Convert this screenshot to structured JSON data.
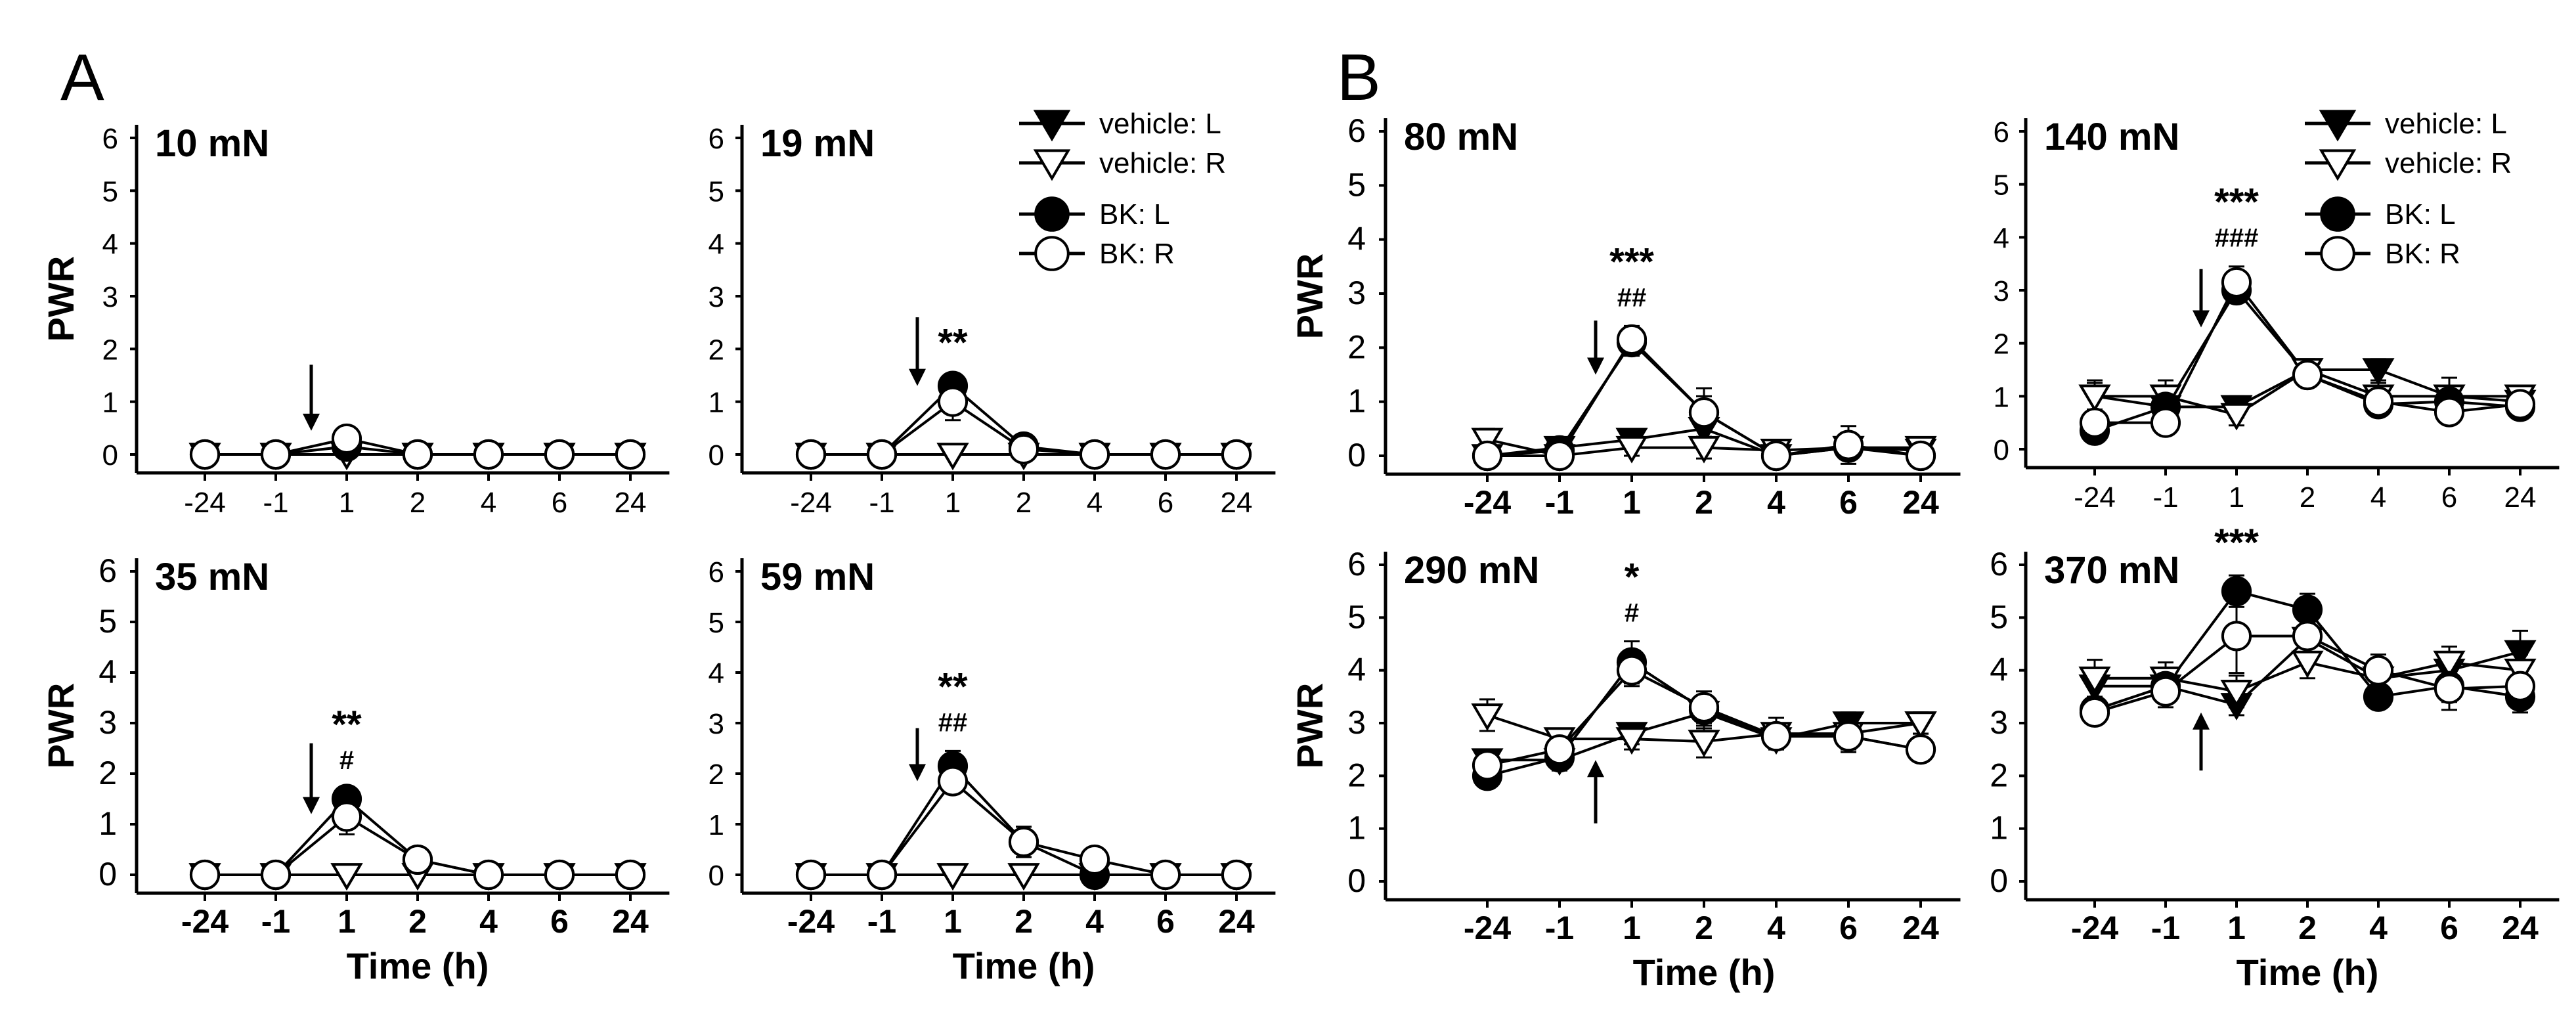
{
  "figure": {
    "panel_labels": [
      "A",
      "B"
    ]
  },
  "legend": {
    "vehicle_L": "vehicle: L",
    "vehicle_R": "vehicle: R",
    "BK_L": "BK: L",
    "BK_R": "BK: R"
  },
  "chart_data": [
    {
      "type": "line",
      "title": "10 mN",
      "group": "A",
      "categories": [
        "-24",
        "-1",
        "1",
        "2",
        "4",
        "6",
        "24"
      ],
      "xlabel": "",
      "ylabel": "PWR",
      "ylim": [
        0,
        6
      ],
      "yticks": [
        "0",
        "1",
        "2",
        "3",
        "4",
        "5",
        "6"
      ],
      "series": [
        {
          "name": "vehicle: L",
          "values": [
            0,
            0,
            0,
            0,
            0,
            0,
            0
          ],
          "err": [
            0,
            0,
            0,
            0,
            0,
            0,
            0
          ]
        },
        {
          "name": "vehicle: R",
          "values": [
            0,
            0,
            0,
            0,
            0,
            0,
            0
          ],
          "err": [
            0,
            0,
            0,
            0,
            0,
            0,
            0
          ]
        },
        {
          "name": "BK: L",
          "values": [
            0,
            0,
            0.15,
            0,
            0,
            0,
            0
          ],
          "err": [
            0,
            0,
            0.1,
            0,
            0,
            0,
            0
          ]
        },
        {
          "name": "BK: R",
          "values": [
            0,
            0,
            0.3,
            0,
            0,
            0,
            0
          ],
          "err": [
            0,
            0,
            0.2,
            0,
            0,
            0,
            0
          ]
        }
      ],
      "arrow": {
        "x_between": [
          1,
          2
        ],
        "direction": "down",
        "y_from": 1.7,
        "y_to": 0.45
      },
      "annotations": []
    },
    {
      "type": "line",
      "title": "19 mN",
      "group": "A",
      "categories": [
        "-24",
        "-1",
        "1",
        "2",
        "4",
        "6",
        "24"
      ],
      "xlabel": "",
      "ylabel": "",
      "ylim": [
        0,
        6
      ],
      "yticks": [
        "0",
        "1",
        "2",
        "3",
        "4",
        "5",
        "6"
      ],
      "series": [
        {
          "name": "vehicle: L",
          "values": [
            0,
            0,
            0,
            0,
            0,
            0,
            0
          ],
          "err": [
            0,
            0,
            0,
            0,
            0,
            0,
            0
          ]
        },
        {
          "name": "vehicle: R",
          "values": [
            0,
            0,
            0,
            0,
            0,
            0,
            0
          ],
          "err": [
            0,
            0,
            0,
            0,
            0,
            0,
            0
          ]
        },
        {
          "name": "BK: L",
          "values": [
            0,
            0,
            1.3,
            0.15,
            0,
            0,
            0
          ],
          "err": [
            0,
            0,
            0.2,
            0.15,
            0,
            0,
            0
          ]
        },
        {
          "name": "BK: R",
          "values": [
            0,
            0,
            1.0,
            0.1,
            0,
            0,
            0
          ],
          "err": [
            0,
            0,
            0.35,
            0.1,
            0,
            0,
            0
          ]
        }
      ],
      "arrow": {
        "x_between": [
          1,
          2
        ],
        "direction": "down",
        "y_from": 2.6,
        "y_to": 1.3
      },
      "annotations": [
        {
          "x": 2,
          "lines": [
            "**"
          ]
        }
      ]
    },
    {
      "type": "line",
      "title": "35 mN",
      "group": "A",
      "categories": [
        "-24",
        "-1",
        "1",
        "2",
        "4",
        "6",
        "24"
      ],
      "xlabel": "Time (h)",
      "ylabel": "PWR",
      "ylim": [
        0,
        6
      ],
      "yticks": [
        "0",
        "1",
        "2",
        "3",
        "4",
        "5",
        "6"
      ],
      "series": [
        {
          "name": "vehicle: L",
          "values": [
            0,
            0,
            0,
            0,
            0,
            0,
            0
          ],
          "err": [
            0,
            0,
            0,
            0,
            0,
            0,
            0
          ]
        },
        {
          "name": "vehicle: R",
          "values": [
            0,
            0,
            0,
            0,
            0,
            0,
            0
          ],
          "err": [
            0,
            0,
            0,
            0,
            0,
            0,
            0
          ]
        },
        {
          "name": "BK: L",
          "values": [
            0,
            0,
            1.5,
            0.3,
            0,
            0,
            0
          ],
          "err": [
            0,
            0,
            0.2,
            0.15,
            0,
            0,
            0
          ]
        },
        {
          "name": "BK: R",
          "values": [
            0,
            0,
            1.15,
            0.3,
            0,
            0,
            0
          ],
          "err": [
            0,
            0,
            0.35,
            0.2,
            0,
            0,
            0
          ]
        }
      ],
      "arrow": {
        "x_between": [
          1,
          2
        ],
        "direction": "down",
        "y_from": 2.6,
        "y_to": 1.2
      },
      "annotations": [
        {
          "x": 2,
          "lines": [
            "**",
            "#"
          ]
        }
      ]
    },
    {
      "type": "line",
      "title": "59 mN",
      "group": "A",
      "categories": [
        "-24",
        "-1",
        "1",
        "2",
        "4",
        "6",
        "24"
      ],
      "xlabel": "Time (h)",
      "ylabel": "",
      "ylim": [
        0,
        6
      ],
      "yticks": [
        "0",
        "1",
        "2",
        "3",
        "4",
        "5",
        "6"
      ],
      "series": [
        {
          "name": "vehicle: L",
          "values": [
            0,
            0,
            0,
            0,
            0,
            0,
            0
          ],
          "err": [
            0,
            0,
            0,
            0,
            0,
            0,
            0
          ]
        },
        {
          "name": "vehicle: R",
          "values": [
            0,
            0,
            0,
            0,
            0,
            0,
            0
          ],
          "err": [
            0,
            0,
            0,
            0,
            0,
            0,
            0
          ]
        },
        {
          "name": "BK: L",
          "values": [
            0,
            0,
            2.15,
            0.65,
            0,
            0,
            0
          ],
          "err": [
            0,
            0,
            0.3,
            0.3,
            0,
            0,
            0
          ]
        },
        {
          "name": "BK: R",
          "values": [
            0,
            0,
            1.85,
            0.65,
            0.3,
            0,
            0
          ],
          "err": [
            0,
            0,
            0.15,
            0.3,
            0.2,
            0,
            0
          ]
        }
      ],
      "arrow": {
        "x_between": [
          1,
          2
        ],
        "direction": "down",
        "y_from": 2.9,
        "y_to": 1.85
      },
      "annotations": [
        {
          "x": 2,
          "lines": [
            "**",
            "##"
          ]
        }
      ]
    },
    {
      "type": "line",
      "title": "80 mN",
      "group": "B",
      "categories": [
        "-24",
        "-1",
        "1",
        "2",
        "4",
        "6",
        "24"
      ],
      "xlabel": "",
      "ylabel": "PWR",
      "ylim": [
        0,
        6
      ],
      "yticks": [
        "0",
        "1",
        "2",
        "3",
        "4",
        "5",
        "6"
      ],
      "series": [
        {
          "name": "vehicle: L",
          "values": [
            0,
            0.15,
            0.3,
            0.5,
            0,
            0.15,
            0.1
          ],
          "err": [
            0.1,
            0.1,
            0.15,
            0.2,
            0.1,
            0.15,
            0.1
          ]
        },
        {
          "name": "vehicle: R",
          "values": [
            0.3,
            0,
            0.15,
            0.15,
            0.1,
            0.15,
            0.15
          ],
          "err": [
            0.2,
            0.1,
            0.15,
            0.2,
            0.15,
            0.2,
            0.15
          ]
        },
        {
          "name": "BK: L",
          "values": [
            0,
            0.1,
            2.1,
            0.8,
            0,
            0.15,
            0
          ],
          "err": [
            0.1,
            0.1,
            0.25,
            0.3,
            0.1,
            0.2,
            0.1
          ]
        },
        {
          "name": "BK: R",
          "values": [
            0,
            0,
            2.15,
            0.8,
            0,
            0.2,
            0
          ],
          "err": [
            0.1,
            0.1,
            0.25,
            0.45,
            0.15,
            0.35,
            0.1
          ]
        }
      ],
      "arrow": {
        "x_between": [
          1,
          2
        ],
        "direction": "down",
        "y_from": 2.5,
        "y_to": 1.5
      },
      "annotations": [
        {
          "x": 2,
          "lines": [
            "***",
            "##"
          ]
        }
      ]
    },
    {
      "type": "line",
      "title": "140 mN",
      "group": "B",
      "categories": [
        "-24",
        "-1",
        "1",
        "2",
        "4",
        "6",
        "24"
      ],
      "xlabel": "",
      "ylabel": "",
      "ylim": [
        0,
        6
      ],
      "yticks": [
        "0",
        "1",
        "2",
        "3",
        "4",
        "5",
        "6"
      ],
      "series": [
        {
          "name": "vehicle: L",
          "values": [
            1.0,
            0.8,
            0.8,
            1.5,
            1.5,
            1.0,
            0.9
          ],
          "err": [
            0.25,
            0.3,
            0.2,
            0.15,
            0.2,
            0.2,
            0.2
          ]
        },
        {
          "name": "vehicle: R",
          "values": [
            1.0,
            1.0,
            0.65,
            1.5,
            1.0,
            1.0,
            1.0
          ],
          "err": [
            0.3,
            0.3,
            0.2,
            0.2,
            0.25,
            0.35,
            0.15
          ]
        },
        {
          "name": "BK: L",
          "values": [
            0.35,
            0.8,
            3.0,
            1.4,
            0.85,
            0.9,
            0.8
          ],
          "err": [
            0.2,
            0.2,
            0.2,
            0.2,
            0.2,
            0.2,
            0.15
          ]
        },
        {
          "name": "BK: R",
          "values": [
            0.5,
            0.5,
            3.15,
            1.4,
            0.9,
            0.7,
            0.85
          ],
          "err": [
            0.2,
            0.2,
            0.3,
            0.2,
            0.25,
            0.2,
            0.2
          ]
        }
      ],
      "arrow": {
        "x_between": [
          1,
          2
        ],
        "direction": "down",
        "y_from": 3.4,
        "y_to": 2.3
      },
      "annotations": [
        {
          "x": 2,
          "lines": [
            "***",
            "###"
          ]
        }
      ]
    },
    {
      "type": "line",
      "title": "290 mN",
      "group": "B",
      "categories": [
        "-24",
        "-1",
        "1",
        "2",
        "4",
        "6",
        "24"
      ],
      "xlabel": "Time (h)",
      "ylabel": "PWR",
      "ylim": [
        0,
        6
      ],
      "yticks": [
        "0",
        "1",
        "2",
        "3",
        "4",
        "5",
        "6"
      ],
      "series": [
        {
          "name": "vehicle: L",
          "values": [
            2.3,
            2.3,
            2.8,
            3.2,
            2.7,
            3.0,
            3.0
          ],
          "err": [
            0.2,
            0.2,
            0.2,
            0.3,
            0.2,
            0.2,
            0.2
          ]
        },
        {
          "name": "vehicle: R",
          "values": [
            3.15,
            2.7,
            2.7,
            2.65,
            2.8,
            2.8,
            3.0
          ],
          "err": [
            0.3,
            0.2,
            0.2,
            0.3,
            0.3,
            0.3,
            0.2
          ]
        },
        {
          "name": "BK: L",
          "values": [
            2.0,
            2.35,
            4.15,
            3.25,
            2.75,
            2.75,
            2.5
          ],
          "err": [
            0.15,
            0.2,
            0.4,
            0.2,
            0.2,
            0.3,
            0.2
          ]
        },
        {
          "name": "BK: R",
          "values": [
            2.2,
            2.5,
            4.0,
            3.3,
            2.75,
            2.75,
            2.5
          ],
          "err": [
            0.2,
            0.2,
            0.3,
            0.3,
            0.2,
            0.3,
            0.2
          ]
        }
      ],
      "arrow": {
        "x_between": [
          1,
          2
        ],
        "direction": "up",
        "y_from": 1.1,
        "y_to": 2.3
      },
      "annotations": [
        {
          "x": 2,
          "lines": [
            "*",
            "#"
          ]
        }
      ]
    },
    {
      "type": "line",
      "title": "370 mN",
      "group": "B",
      "categories": [
        "-24",
        "-1",
        "1",
        "2",
        "4",
        "6",
        "24"
      ],
      "xlabel": "Time (h)",
      "ylabel": "",
      "ylim": [
        0,
        6
      ],
      "yticks": [
        "0",
        "1",
        "2",
        "3",
        "4",
        "5",
        "6"
      ],
      "series": [
        {
          "name": "vehicle: L",
          "values": [
            3.7,
            3.7,
            3.35,
            4.6,
            3.85,
            4.0,
            4.35
          ],
          "err": [
            0.25,
            0.3,
            0.2,
            0.3,
            0.3,
            0.3,
            0.4
          ]
        },
        {
          "name": "vehicle: R",
          "values": [
            3.85,
            3.85,
            3.6,
            4.15,
            3.85,
            4.15,
            4.0
          ],
          "err": [
            0.35,
            0.3,
            0.3,
            0.3,
            0.3,
            0.3,
            0.3
          ]
        },
        {
          "name": "BK: L",
          "values": [
            3.25,
            3.7,
            5.5,
            5.15,
            3.5,
            3.7,
            3.5
          ],
          "err": [
            0.2,
            0.3,
            0.3,
            0.3,
            0.2,
            0.3,
            0.3
          ]
        },
        {
          "name": "BK: R",
          "values": [
            3.2,
            3.6,
            4.65,
            4.65,
            4.0,
            3.65,
            3.7
          ],
          "err": [
            0.2,
            0.3,
            0.7,
            0.4,
            0.3,
            0.4,
            0.3
          ]
        }
      ],
      "arrow": {
        "x_between": [
          1,
          2
        ],
        "direction": "up",
        "y_from": 2.1,
        "y_to": 3.2
      },
      "annotations": [
        {
          "x": 2,
          "lines": [
            "***"
          ]
        }
      ]
    }
  ]
}
